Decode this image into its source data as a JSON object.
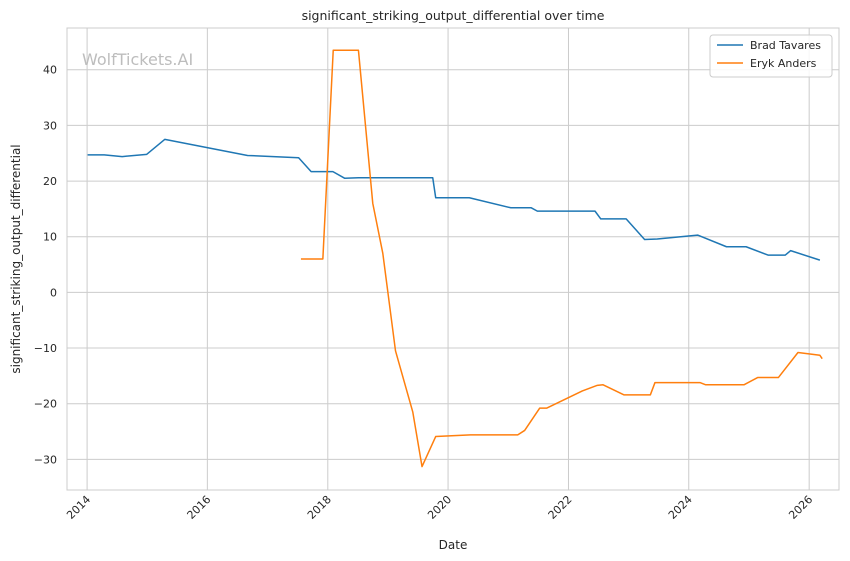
{
  "chart_data": {
    "type": "line",
    "title": "significant_striking_output_differential over time",
    "xlabel": "Date",
    "ylabel": "significant_striking_output_differential",
    "watermark": "WolfTickets.AI",
    "xlim": [
      "2013-09-01",
      "2026-07-01"
    ],
    "ylim": [
      -35.5,
      47.5
    ],
    "x_ticks": [
      "2014",
      "2016",
      "2018",
      "2020",
      "2022",
      "2024",
      "2026"
    ],
    "y_ticks": [
      40,
      30,
      20,
      10,
      0,
      -10,
      -20,
      -30
    ],
    "grid": true,
    "legend_position": "top-right",
    "colors": {
      "Brad Tavares": "#1f77b4",
      "Eryk Anders": "#ff7f0e"
    },
    "series": [
      {
        "name": "Brad Tavares",
        "color": "#1f77b4",
        "points": [
          [
            "2014-01-04",
            24.7
          ],
          [
            "2014-04-15",
            24.7
          ],
          [
            "2014-08-02",
            24.4
          ],
          [
            "2014-12-29",
            24.8
          ],
          [
            "2015-04-18",
            27.5
          ],
          [
            "2016-09-01",
            24.6
          ],
          [
            "2017-07-08",
            24.2
          ],
          [
            "2017-09-22",
            21.7
          ],
          [
            "2018-02-01",
            21.7
          ],
          [
            "2018-04-14",
            20.5
          ],
          [
            "2018-07-06",
            20.6
          ],
          [
            "2019-09-30",
            20.6
          ],
          [
            "2019-10-18",
            17.0
          ],
          [
            "2020-05-09",
            17.0
          ],
          [
            "2021-01-16",
            15.2
          ],
          [
            "2021-05-20",
            15.2
          ],
          [
            "2021-06-26",
            14.6
          ],
          [
            "2022-06-11",
            14.6
          ],
          [
            "2022-07-16",
            13.2
          ],
          [
            "2022-12-17",
            13.2
          ],
          [
            "2023-04-08",
            9.5
          ],
          [
            "2023-06-24",
            9.6
          ],
          [
            "2024-02-24",
            10.3
          ],
          [
            "2024-08-17",
            8.2
          ],
          [
            "2024-12-14",
            8.2
          ],
          [
            "2025-04-26",
            6.7
          ],
          [
            "2025-08-09",
            6.7
          ],
          [
            "2025-09-10",
            7.5
          ],
          [
            "2026-03-07",
            5.8
          ]
        ]
      },
      {
        "name": "Eryk Anders",
        "color": "#ff7f0e",
        "points": [
          [
            "2017-07-22",
            6.0
          ],
          [
            "2017-12-02",
            6.0
          ],
          [
            "2018-02-03",
            43.5
          ],
          [
            "2018-07-06",
            43.5
          ],
          [
            "2018-10-01",
            16.0
          ],
          [
            "2018-12-01",
            7.0
          ],
          [
            "2019-02-16",
            -10.5
          ],
          [
            "2019-06-01",
            -21.5
          ],
          [
            "2019-07-27",
            -31.3
          ],
          [
            "2019-10-18",
            -25.9
          ],
          [
            "2020-05-16",
            -25.6
          ],
          [
            "2021-02-27",
            -25.6
          ],
          [
            "2021-04-10",
            -24.8
          ],
          [
            "2021-07-10",
            -20.8
          ],
          [
            "2021-08-21",
            -20.8
          ],
          [
            "2022-03-26",
            -17.7
          ],
          [
            "2022-06-25",
            -16.7
          ],
          [
            "2022-07-30",
            -16.6
          ],
          [
            "2022-12-03",
            -18.4
          ],
          [
            "2023-05-13",
            -18.4
          ],
          [
            "2023-06-10",
            -16.2
          ],
          [
            "2024-03-09",
            -16.2
          ],
          [
            "2024-04-13",
            -16.6
          ],
          [
            "2024-12-01",
            -16.6
          ],
          [
            "2025-02-22",
            -15.3
          ],
          [
            "2025-06-28",
            -15.3
          ],
          [
            "2025-10-25",
            -10.8
          ],
          [
            "2026-03-07",
            -11.3
          ],
          [
            "2026-03-21",
            -11.9
          ]
        ]
      }
    ]
  }
}
